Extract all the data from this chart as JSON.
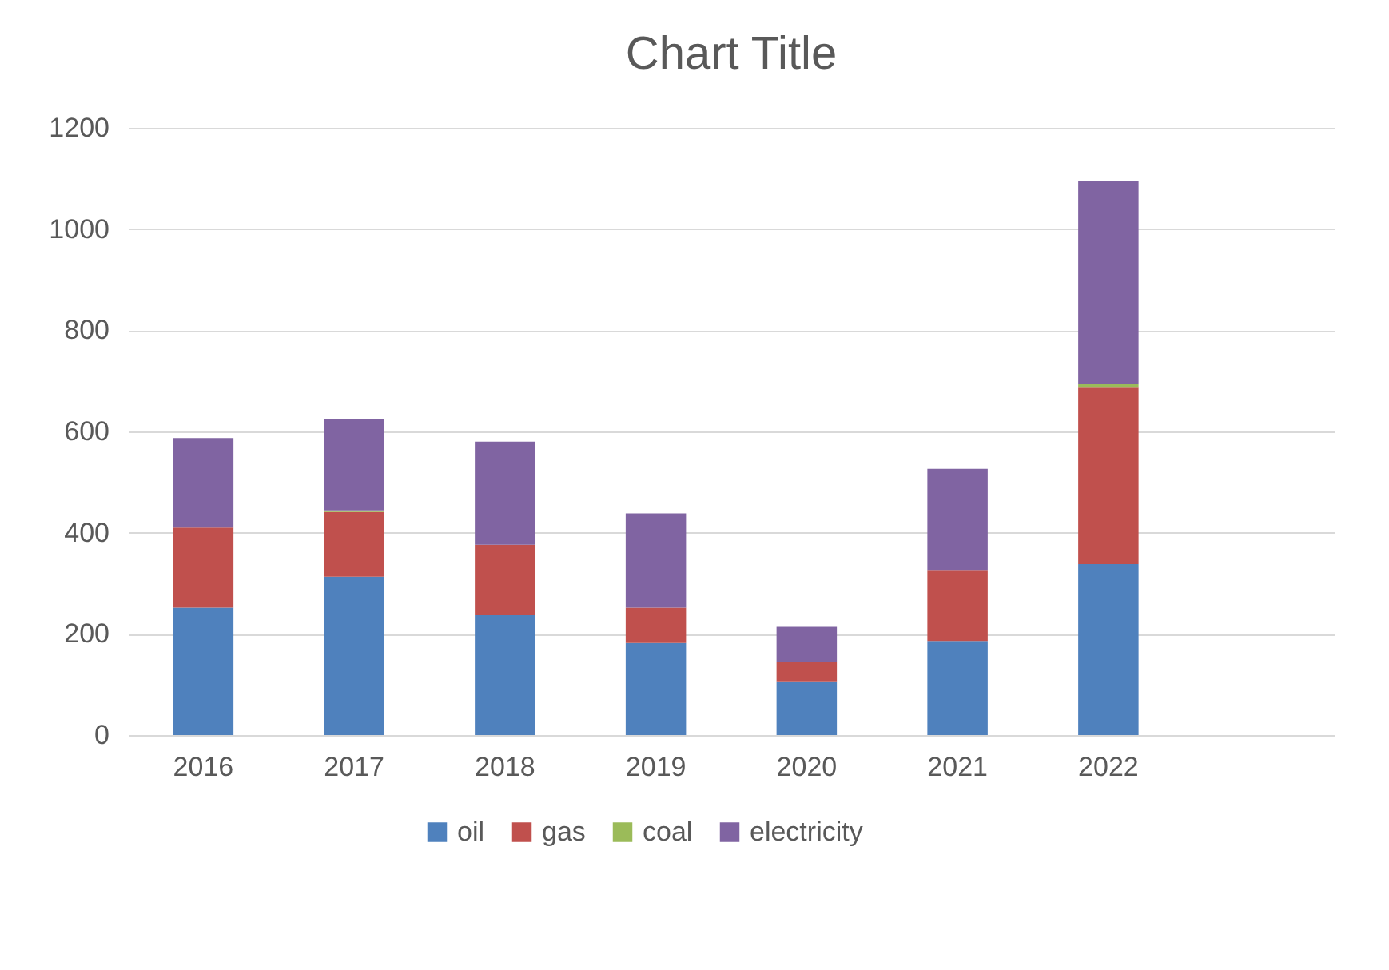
{
  "chart_data": {
    "type": "bar",
    "title": "Chart Title",
    "stacked": true,
    "categories": [
      "2016",
      "2017",
      "2018",
      "2019",
      "2020",
      "2021",
      "2022",
      null
    ],
    "series": [
      {
        "name": "oil",
        "color": "#4f81bd",
        "values": [
          252,
          313,
          237,
          182,
          106,
          186,
          338,
          null
        ]
      },
      {
        "name": "gas",
        "color": "#c0504d",
        "values": [
          158,
          128,
          139,
          70,
          38,
          139,
          350,
          null
        ]
      },
      {
        "name": "coal",
        "color": "#9bbb59",
        "values": [
          0,
          3,
          0,
          0,
          0,
          0,
          6,
          null
        ]
      },
      {
        "name": "electricity",
        "color": "#8064a2",
        "values": [
          177,
          180,
          204,
          186,
          70,
          201,
          401,
          null
        ]
      }
    ],
    "ylim": [
      0,
      1200
    ],
    "yticks": [
      0,
      200,
      400,
      600,
      800,
      1000,
      1200
    ],
    "grid": "y",
    "legend": "bottom"
  }
}
